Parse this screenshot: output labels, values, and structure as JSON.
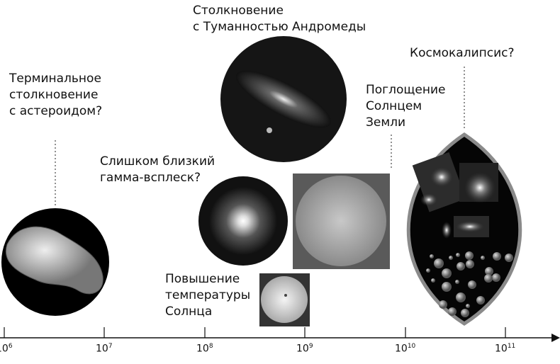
{
  "events": [
    {
      "id": "asteroid",
      "lines": [
        "Терминальное",
        "столкновение",
        "с астероидом?"
      ]
    },
    {
      "id": "gamma",
      "lines": [
        "Слишком близкий",
        "гамма-всплеск?"
      ]
    },
    {
      "id": "andromeda",
      "lines": [
        "Столкновение",
        "с Туманностью Андромеды"
      ]
    },
    {
      "id": "sun-heat",
      "lines": [
        "Повышение",
        "температуры",
        "Солнца"
      ]
    },
    {
      "id": "earth-engulf",
      "lines": [
        "Поглощение",
        "Солнцем",
        "Земли"
      ]
    },
    {
      "id": "cosmocalypse",
      "lines": [
        "Космокалипсис?"
      ]
    }
  ],
  "axis": {
    "scale": "log",
    "ticks": [
      {
        "base": "10",
        "exp": "6"
      },
      {
        "base": "10",
        "exp": "7"
      },
      {
        "base": "10",
        "exp": "8"
      },
      {
        "base": "10",
        "exp": "9"
      },
      {
        "base": "10",
        "exp": "10"
      },
      {
        "base": "10",
        "exp": "11"
      }
    ]
  }
}
